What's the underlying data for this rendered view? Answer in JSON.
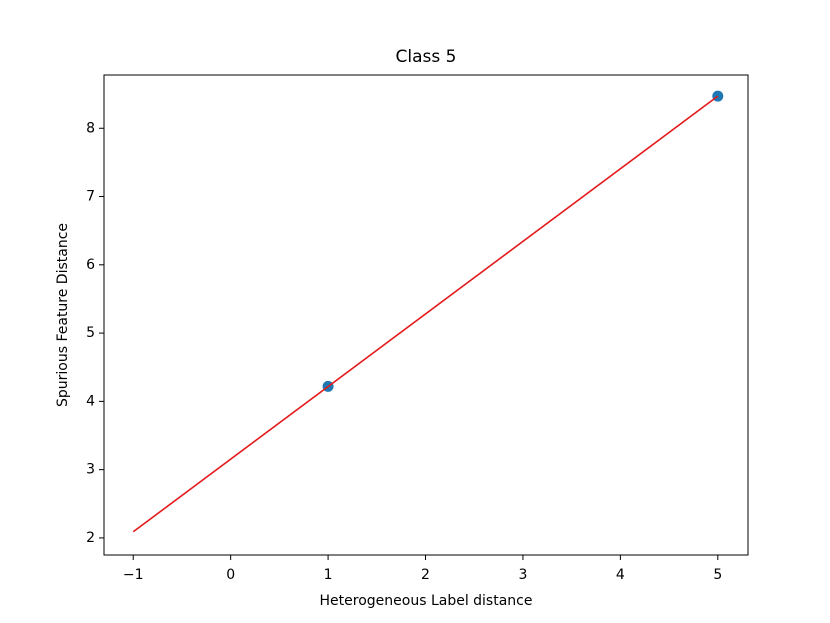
{
  "chart_data": {
    "type": "scatter",
    "title": "Class 5",
    "xlabel": "Heterogeneous Label distance",
    "ylabel": "Spurious Feature Distance",
    "points": {
      "x": [
        1,
        5
      ],
      "y": [
        4.22,
        8.47
      ],
      "color": "#1f77b4"
    },
    "line": {
      "x": [
        -1,
        5
      ],
      "y": [
        2.09,
        8.47
      ],
      "color": "#e31a1c"
    },
    "xlim": [
      -1.3,
      5.31
    ],
    "ylim": [
      1.75,
      8.78
    ],
    "xticks": [
      {
        "value": -1,
        "label": "−1"
      },
      0,
      1,
      2,
      3,
      4,
      5
    ],
    "yticks": [
      2,
      3,
      4,
      5,
      6,
      7,
      8
    ]
  }
}
